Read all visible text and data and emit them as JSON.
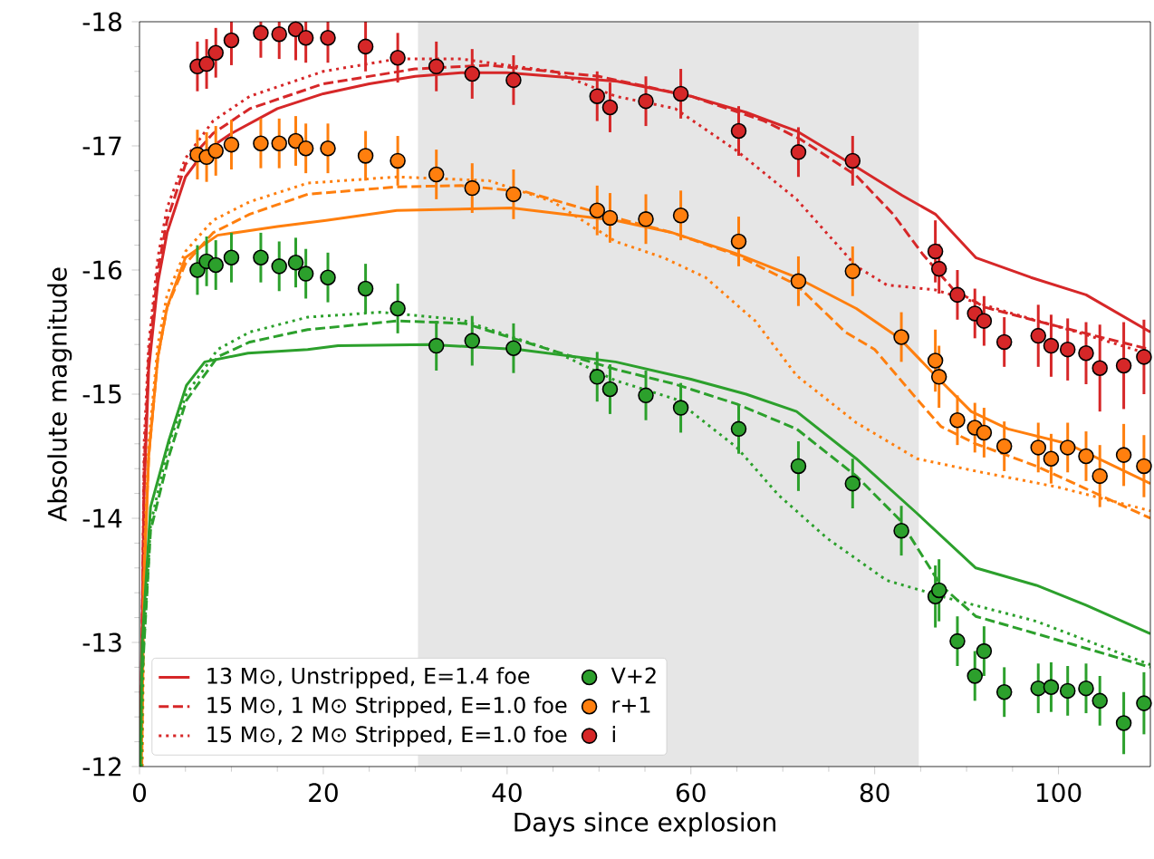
{
  "chart_data": {
    "type": "line",
    "xlabel": "Days since explosion",
    "ylabel": "Absolute magnitude",
    "xlim": [
      0,
      110
    ],
    "ylim": [
      -12,
      -18
    ],
    "xticks": [
      0,
      20,
      40,
      60,
      80,
      100
    ],
    "yticks": [
      -18,
      -17,
      -16,
      -15,
      -14,
      -13,
      -12
    ],
    "grid": false,
    "legend": "bottom left",
    "bands": [
      {
        "axis": "x",
        "from": 30.3,
        "to": 84.8,
        "color": "#e6e6e6"
      }
    ],
    "series": [
      {
        "name": "13 M⊙, Unstripped, E=1.4 foe",
        "color": "#d62728",
        "line_style": "solid",
        "marker": "none",
        "x": [
          0.05,
          0.5,
          1,
          2,
          3,
          5,
          7,
          10,
          15,
          20,
          25,
          30,
          35,
          40,
          45,
          52,
          60,
          66,
          71.5,
          78,
          83,
          86.6,
          91,
          97,
          103,
          110
        ],
        "values": [
          -12,
          -14.2,
          -15.2,
          -15.9,
          -16.3,
          -16.75,
          -16.95,
          -17.1,
          -17.3,
          -17.42,
          -17.5,
          -17.56,
          -17.59,
          -17.59,
          -17.56,
          -17.52,
          -17.4,
          -17.27,
          -17.12,
          -16.83,
          -16.6,
          -16.45,
          -16.1,
          -15.94,
          -15.8,
          -15.5
        ]
      },
      {
        "name": "15 M⊙, 1 M⊙ Stripped, E=1.0 foe",
        "color": "#d62728",
        "line_style": "dashed",
        "marker": "none",
        "x": [
          0.1,
          0.5,
          1,
          2,
          3,
          5,
          8,
          12,
          20,
          30,
          38,
          50,
          60,
          68,
          72,
          78,
          82,
          85.2,
          88.6,
          92,
          97.6,
          104,
          110
        ],
        "values": [
          -12,
          -14.4,
          -15.3,
          -16.0,
          -16.4,
          -16.85,
          -17.1,
          -17.3,
          -17.5,
          -17.62,
          -17.65,
          -17.56,
          -17.4,
          -17.2,
          -17.05,
          -16.76,
          -16.45,
          -16.13,
          -15.84,
          -15.7,
          -15.59,
          -15.47,
          -15.36
        ]
      },
      {
        "name": "15 M⊙, 2 M⊙ Stripped, E=1.0 foe",
        "color": "#d62728",
        "line_style": "dotted",
        "marker": "none",
        "x": [
          0.15,
          0.5,
          1,
          2,
          3,
          5,
          8,
          12,
          20,
          28,
          35,
          45,
          51.8,
          58.3,
          65,
          71.5,
          78,
          81.3,
          86.6,
          94.5,
          102,
          110
        ],
        "values": [
          -12,
          -14.6,
          -15.4,
          -16.1,
          -16.5,
          -16.9,
          -17.2,
          -17.4,
          -17.6,
          -17.7,
          -17.7,
          -17.6,
          -17.4,
          -17.3,
          -16.96,
          -16.57,
          -16.03,
          -15.88,
          -15.84,
          -15.66,
          -15.5,
          -15.32
        ]
      },
      {
        "color": "#ff7f0e",
        "line_style": "solid",
        "marker": "none",
        "x": [
          0.2,
          0.5,
          1,
          2,
          3,
          5,
          8.5,
          15,
          20.3,
          28,
          40.5,
          51.8,
          58,
          65,
          71.5,
          78,
          82.7,
          86.6,
          90.5,
          94.5,
          101,
          110
        ],
        "values": [
          -12,
          -13.5,
          -14.5,
          -15.3,
          -15.7,
          -16.1,
          -16.28,
          -16.35,
          -16.4,
          -16.48,
          -16.5,
          -16.4,
          -16.3,
          -16.13,
          -15.94,
          -15.69,
          -15.45,
          -15.15,
          -14.86,
          -14.72,
          -14.6,
          -14.28
        ]
      },
      {
        "color": "#ff7f0e",
        "line_style": "dashed",
        "marker": "none",
        "x": [
          0.25,
          0.5,
          1,
          2,
          3,
          5,
          8,
          12,
          18.3,
          28,
          35,
          42,
          51.8,
          58,
          65,
          71.5,
          76.8,
          80,
          84.6,
          87.2,
          91,
          97.6,
          110
        ],
        "values": [
          -12,
          -13.6,
          -14.5,
          -15.3,
          -15.7,
          -16.05,
          -16.3,
          -16.45,
          -16.61,
          -16.67,
          -16.68,
          -16.63,
          -16.42,
          -16.3,
          -16.12,
          -15.88,
          -15.5,
          -15.36,
          -14.96,
          -14.74,
          -14.6,
          -14.42,
          -14.0
        ]
      },
      {
        "color": "#ff7f0e",
        "line_style": "dotted",
        "marker": "none",
        "x": [
          0.3,
          0.55,
          1,
          2,
          3,
          5,
          8,
          12,
          18.3,
          28,
          38,
          45,
          51.8,
          57,
          61.6,
          67,
          71.5,
          78,
          84.6,
          91,
          100,
          110
        ],
        "values": [
          -12,
          -13.8,
          -14.6,
          -15.4,
          -15.8,
          -16.15,
          -16.4,
          -16.55,
          -16.7,
          -16.75,
          -16.72,
          -16.55,
          -16.23,
          -16.1,
          -15.94,
          -15.59,
          -15.15,
          -14.77,
          -14.48,
          -14.38,
          -14.25,
          -14.06
        ]
      },
      {
        "color": "#2ca02c",
        "line_style": "solid",
        "marker": "none",
        "x": [
          0.1,
          0.3,
          1.2,
          3.2,
          5.1,
          7.1,
          11.8,
          18.3,
          21.6,
          31.5,
          41.3,
          51.8,
          60,
          66,
          71.5,
          78,
          84.6,
          91,
          97.6,
          103,
          110
        ],
        "values": [
          -12,
          -13,
          -14.09,
          -14.63,
          -15.07,
          -15.26,
          -15.33,
          -15.36,
          -15.39,
          -15.4,
          -15.36,
          -15.26,
          -15.12,
          -15.0,
          -14.86,
          -14.48,
          -14.04,
          -13.6,
          -13.46,
          -13.3,
          -13.07
        ]
      },
      {
        "color": "#2ca02c",
        "line_style": "dashed",
        "marker": "none",
        "x": [
          0.35,
          1.2,
          3.2,
          5.1,
          8.5,
          12,
          18.3,
          28.1,
          35.4,
          45,
          51.8,
          58.3,
          65,
          71.5,
          78,
          82.7,
          87.2,
          91,
          97.6,
          110
        ],
        "values": [
          -12.8,
          -13.9,
          -14.5,
          -14.95,
          -15.3,
          -15.42,
          -15.52,
          -15.59,
          -15.57,
          -15.35,
          -15.2,
          -15.08,
          -14.92,
          -14.72,
          -14.34,
          -13.99,
          -13.46,
          -13.21,
          -13.07,
          -12.8
        ]
      },
      {
        "color": "#2ca02c",
        "line_style": "dotted",
        "marker": "none",
        "x": [
          0.2,
          0.4,
          1.2,
          3.2,
          5.1,
          8.5,
          12,
          18.3,
          26.2,
          35,
          45,
          51.8,
          58.3,
          65,
          69.5,
          74.8,
          81.3,
          87.8,
          97.6,
          110
        ],
        "values": [
          -12,
          -12.9,
          -13.95,
          -14.6,
          -15.0,
          -15.36,
          -15.5,
          -15.62,
          -15.66,
          -15.6,
          -15.35,
          -15.11,
          -14.96,
          -14.57,
          -14.19,
          -13.84,
          -13.5,
          -13.36,
          -13.17,
          -12.82
        ]
      },
      {
        "name": "V+2",
        "type": "scatter",
        "color": "#2ca02c",
        "marker": "circle",
        "x": [
          6.3,
          7.3,
          8.3,
          10.0,
          13.2,
          15.2,
          17.0,
          18.1,
          20.5,
          24.6,
          28.1,
          32.3,
          36.2,
          40.7,
          49.8,
          51.2,
          55.1,
          58.9,
          65.2,
          71.7,
          77.6,
          82.9,
          86.6,
          87.0,
          89.0,
          90.9,
          91.9,
          94.1,
          97.8,
          99.2,
          101.0,
          103.0,
          104.5,
          107.1,
          109.3
        ],
        "values": [
          -16.0,
          -16.07,
          -16.04,
          -16.1,
          -16.1,
          -16.03,
          -16.06,
          -15.97,
          -15.94,
          -15.85,
          -15.69,
          -15.39,
          -15.43,
          -15.37,
          -15.14,
          -15.04,
          -14.99,
          -14.89,
          -14.72,
          -14.42,
          -14.28,
          -13.9,
          -13.37,
          -13.42,
          -13.01,
          -12.73,
          -12.93,
          -12.6,
          -12.63,
          -12.64,
          -12.61,
          -12.63,
          -12.53,
          -12.35,
          -12.51
        ],
        "errors": [
          0.2,
          0.2,
          0.2,
          0.2,
          0.2,
          0.2,
          0.2,
          0.2,
          0.2,
          0.2,
          0.2,
          0.2,
          0.2,
          0.2,
          0.2,
          0.2,
          0.2,
          0.2,
          0.2,
          0.2,
          0.2,
          0.2,
          0.25,
          0.25,
          0.2,
          0.2,
          0.2,
          0.2,
          0.2,
          0.2,
          0.2,
          0.2,
          0.2,
          0.25,
          0.25
        ]
      },
      {
        "name": "r+1",
        "type": "scatter",
        "color": "#ff7f0e",
        "marker": "circle",
        "x": [
          6.3,
          7.3,
          8.3,
          10.0,
          13.2,
          15.2,
          17.0,
          18.1,
          20.5,
          24.6,
          28.1,
          32.3,
          36.2,
          40.7,
          49.8,
          51.2,
          55.1,
          58.9,
          65.2,
          71.7,
          77.6,
          82.9,
          86.6,
          87.0,
          89.0,
          90.9,
          91.9,
          94.1,
          97.8,
          99.2,
          101.0,
          103.0,
          104.5,
          107.1,
          109.3
        ],
        "values": [
          -16.93,
          -16.91,
          -16.96,
          -17.01,
          -17.02,
          -17.02,
          -17.04,
          -16.98,
          -16.98,
          -16.92,
          -16.88,
          -16.77,
          -16.66,
          -16.61,
          -16.48,
          -16.42,
          -16.41,
          -16.44,
          -16.23,
          -15.91,
          -15.99,
          -15.46,
          -15.27,
          -15.14,
          -14.79,
          -14.73,
          -14.69,
          -14.58,
          -14.57,
          -14.48,
          -14.57,
          -14.5,
          -14.34,
          -14.51,
          -14.42
        ],
        "errors": [
          0.2,
          0.2,
          0.2,
          0.2,
          0.2,
          0.2,
          0.2,
          0.2,
          0.2,
          0.2,
          0.2,
          0.2,
          0.2,
          0.2,
          0.2,
          0.2,
          0.2,
          0.2,
          0.2,
          0.2,
          0.2,
          0.2,
          0.25,
          0.25,
          0.2,
          0.2,
          0.2,
          0.2,
          0.2,
          0.2,
          0.2,
          0.2,
          0.25,
          0.25,
          0.25
        ]
      },
      {
        "name": "i",
        "type": "scatter",
        "color": "#d62728",
        "marker": "circle",
        "x": [
          6.3,
          7.3,
          8.3,
          10.0,
          13.2,
          15.2,
          17.0,
          18.1,
          20.5,
          24.6,
          28.1,
          32.3,
          36.2,
          40.7,
          49.8,
          51.2,
          55.1,
          58.9,
          65.2,
          71.7,
          77.6,
          86.6,
          87.0,
          89.0,
          90.9,
          91.9,
          94.1,
          97.8,
          99.2,
          101.0,
          103.0,
          104.5,
          107.1,
          109.3
        ],
        "values": [
          -17.64,
          -17.66,
          -17.75,
          -17.85,
          -17.91,
          -17.9,
          -17.94,
          -17.87,
          -17.87,
          -17.8,
          -17.71,
          -17.64,
          -17.58,
          -17.53,
          -17.4,
          -17.31,
          -17.36,
          -17.42,
          -17.12,
          -16.95,
          -16.88,
          -16.15,
          -16.01,
          -15.8,
          -15.65,
          -15.59,
          -15.42,
          -15.47,
          -15.39,
          -15.36,
          -15.33,
          -15.21,
          -15.23,
          -15.3
        ],
        "errors": [
          0.2,
          0.2,
          0.2,
          0.2,
          0.2,
          0.2,
          0.25,
          0.2,
          0.2,
          0.2,
          0.2,
          0.2,
          0.2,
          0.2,
          0.2,
          0.2,
          0.2,
          0.2,
          0.2,
          0.2,
          0.2,
          0.25,
          0.2,
          0.2,
          0.2,
          0.2,
          0.2,
          0.25,
          0.25,
          0.25,
          0.25,
          0.35,
          0.35,
          0.3
        ]
      }
    ]
  }
}
